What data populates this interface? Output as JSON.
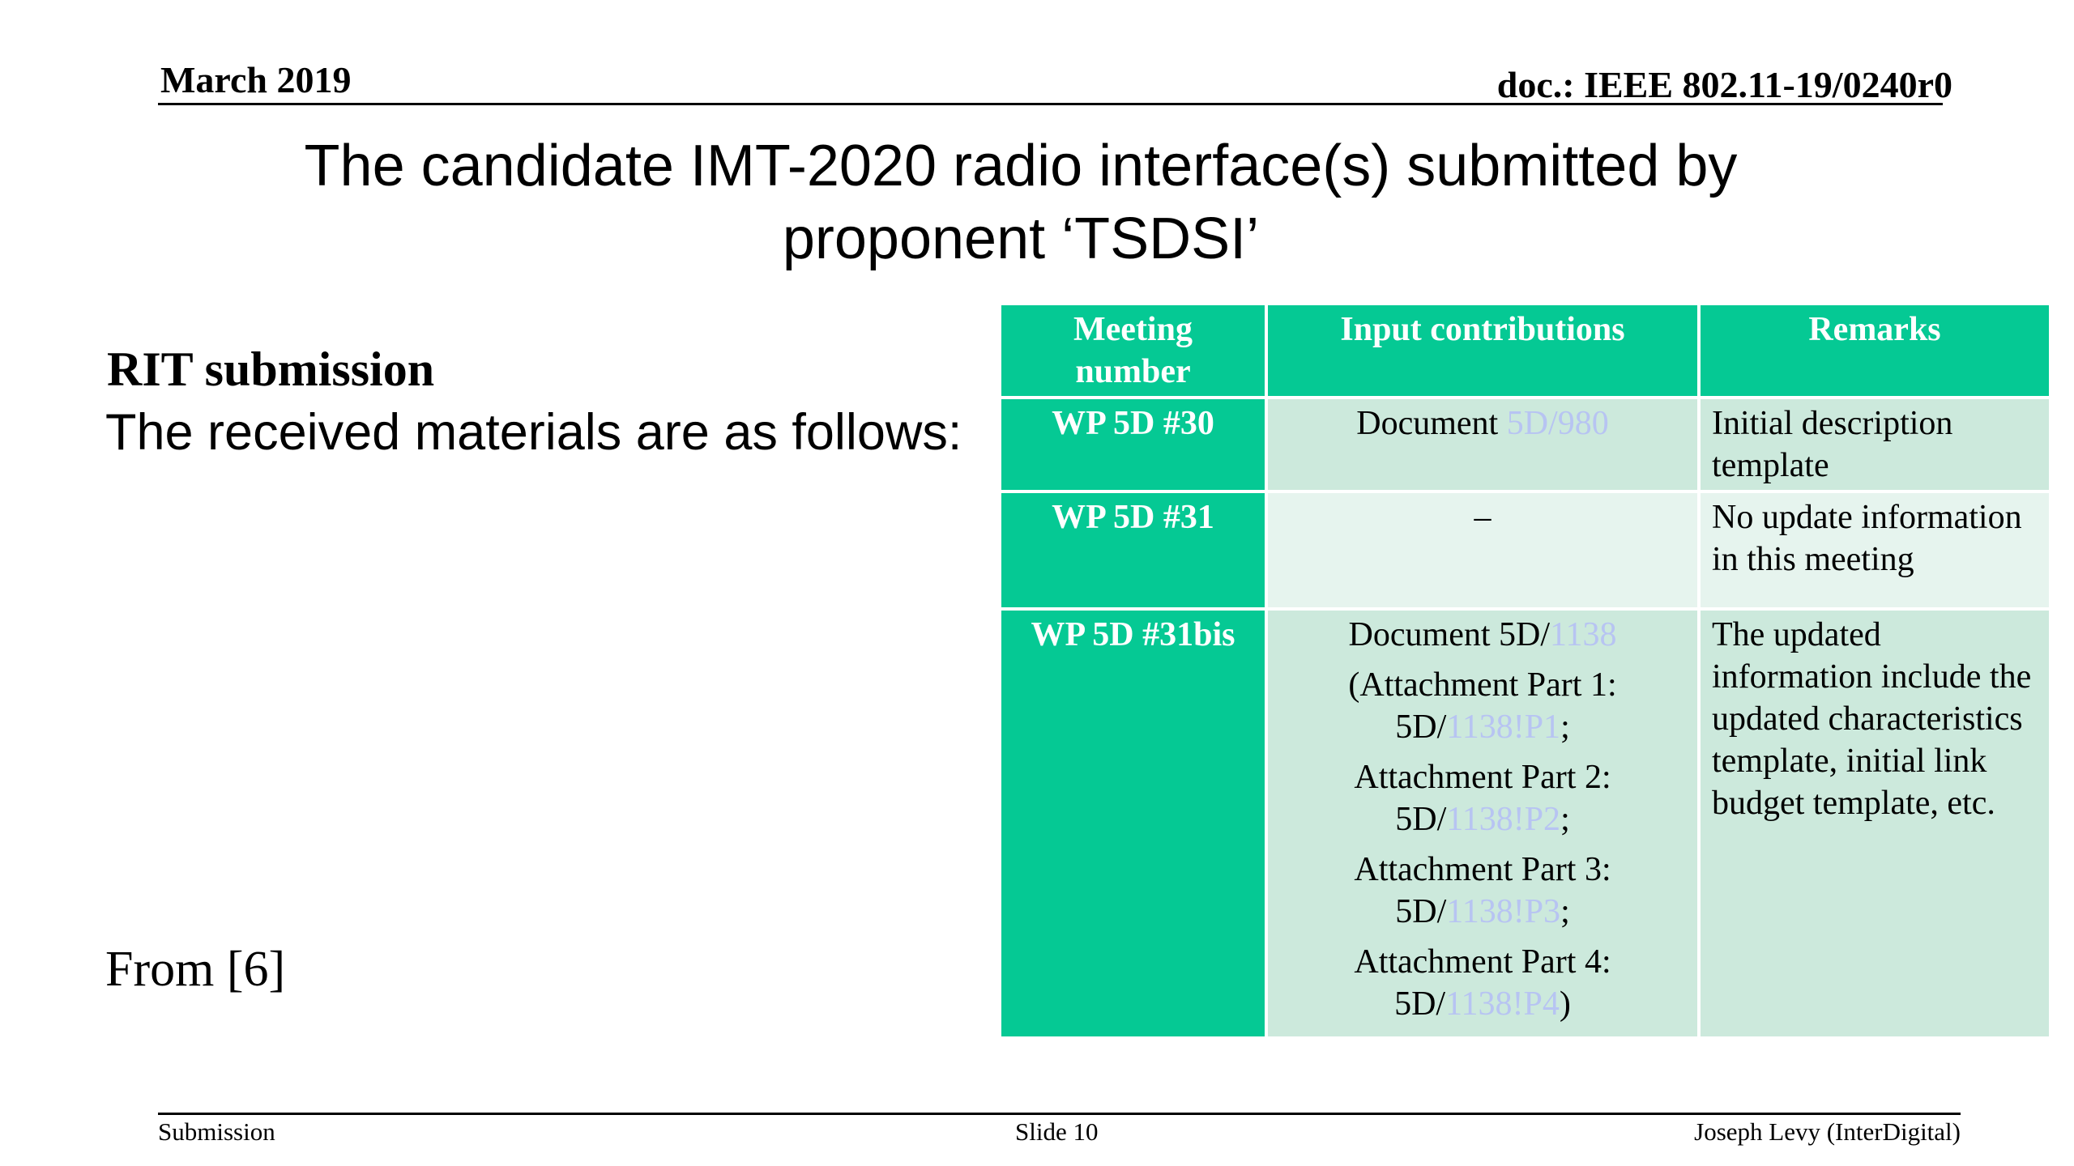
{
  "header": {
    "date": "March 2019",
    "doc": "doc.: IEEE 802.11-19/0240r0"
  },
  "title": "The candidate IMT-2020 radio interface(s) submitted by proponent ‘TSDSI’",
  "body": {
    "heading": "RIT submission",
    "text": "The received materials are as follows:",
    "source": "From [6]"
  },
  "table": {
    "columns": [
      "Meeting number",
      "Input contributions",
      "Remarks"
    ],
    "rows": [
      {
        "meeting": "WP 5D #30",
        "input": [
          [
            "Document ",
            "5D/980"
          ]
        ],
        "remarks": "Initial description template"
      },
      {
        "meeting": "WP 5D #31",
        "input": [
          [
            "–"
          ]
        ],
        "remarks": "No update information in this meeting"
      },
      {
        "meeting": "WP 5D #31bis",
        "input": [
          [
            "Document 5D/",
            "1138"
          ],
          [
            "(Attachment Part 1: 5D/",
            "1138!P1",
            ";"
          ],
          [
            "Attachment Part 2: 5D/",
            "1138!P2",
            ";"
          ],
          [
            "Attachment Part 3: 5D/",
            "1138!P3",
            ";"
          ],
          [
            "Attachment Part 4: 5D/",
            "1138!P4",
            ")"
          ]
        ],
        "remarks": "The updated information include the updated characteristics template, initial link budget template, etc."
      }
    ]
  },
  "footer": {
    "left": "Submission",
    "center": "Slide 10",
    "right": "Joseph Levy (InterDigital)"
  }
}
